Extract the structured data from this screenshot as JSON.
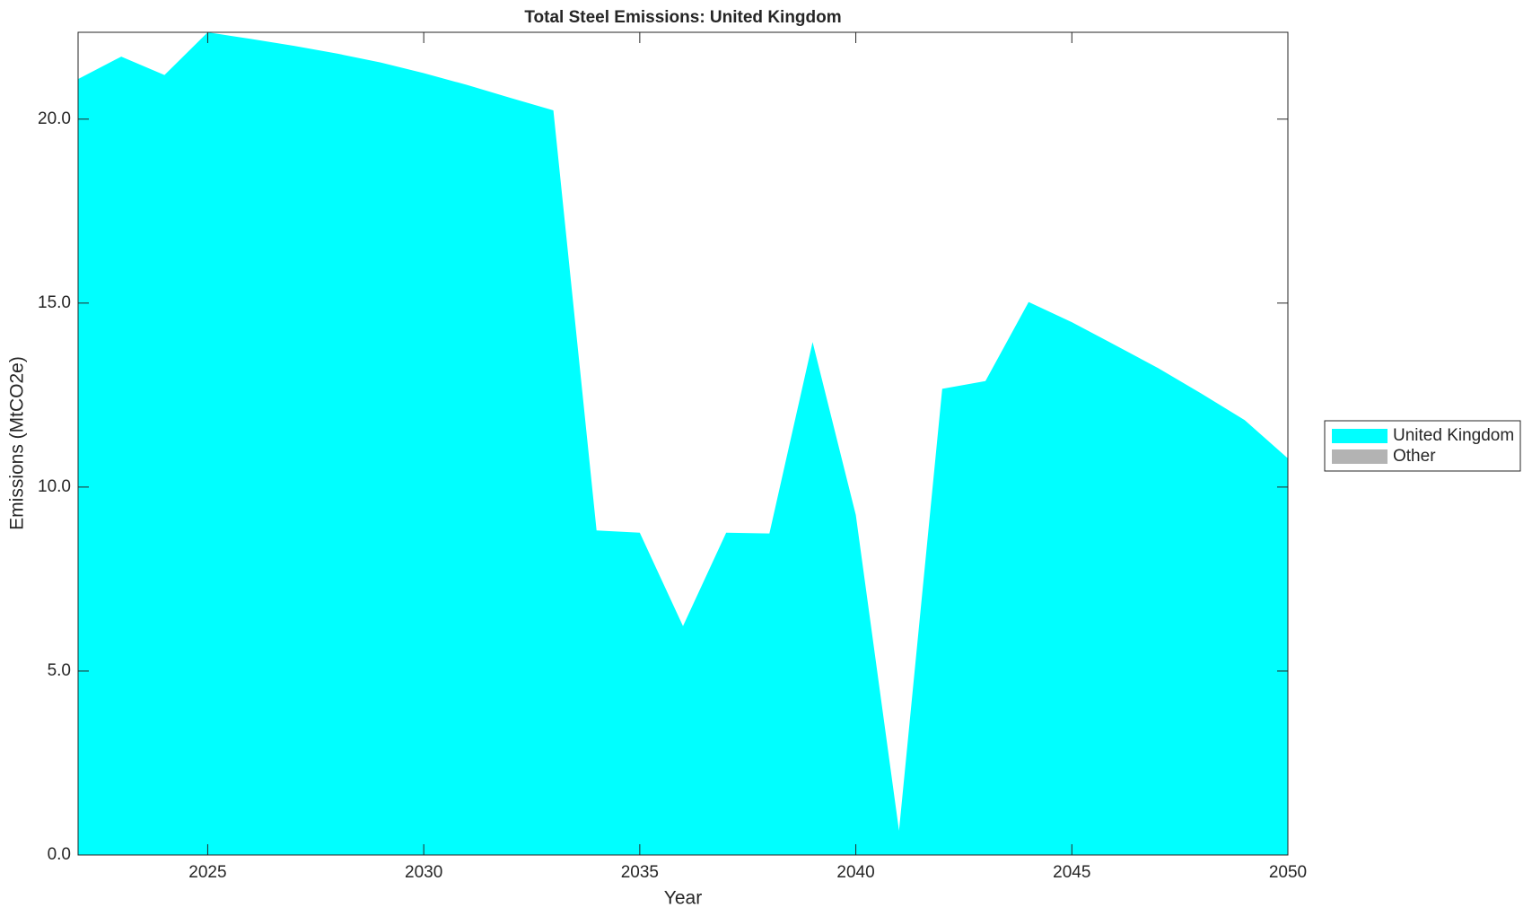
{
  "chart_data": {
    "type": "stacked_area",
    "title": "Total Steel Emissions: United Kingdom",
    "x_label": "Year",
    "y_label": "Emissions (MtCO2e)",
    "x": [
      2022,
      2023,
      2024,
      2025,
      2026,
      2027,
      2028,
      2029,
      2030,
      2031,
      2032,
      2033,
      2034,
      2035,
      2036,
      2037,
      2038,
      2039,
      2040,
      2041,
      2042,
      2043,
      2044,
      2045,
      2046,
      2047,
      2048,
      2049,
      2050
    ],
    "series": [
      {
        "name": "United Kingdom",
        "color": "#00ffff",
        "values": [
          21.09,
          21.7,
          21.2,
          22.36,
          22.18,
          21.99,
          21.78,
          21.54,
          21.25,
          20.93,
          20.58,
          20.24,
          8.82,
          8.76,
          6.22,
          8.76,
          8.74,
          13.94,
          9.24,
          0.66,
          12.67,
          12.88,
          15.03,
          14.48,
          13.86,
          13.23,
          12.54,
          11.82,
          10.78
        ]
      },
      {
        "name": "Other",
        "color": "#b3b3b3",
        "values": [
          0,
          0,
          0,
          0,
          0,
          0,
          0,
          0,
          0,
          0,
          0,
          0,
          0,
          0,
          0,
          0,
          0,
          0,
          0,
          0,
          0,
          0,
          0,
          0,
          0,
          0,
          0,
          0,
          0
        ]
      }
    ],
    "xlim": [
      2022,
      2050
    ],
    "xticks": [
      2025,
      2030,
      2035,
      2040,
      2045,
      2050
    ],
    "ylim": [
      0,
      22.36
    ],
    "yticks": [
      {
        "value": 0,
        "label": "0.0"
      },
      {
        "value": 5,
        "label": "5.0"
      },
      {
        "value": 10,
        "label": "10.0"
      },
      {
        "value": 15,
        "label": "15.0"
      },
      {
        "value": 20,
        "label": "20.0"
      }
    ],
    "legend": "outside-right"
  }
}
